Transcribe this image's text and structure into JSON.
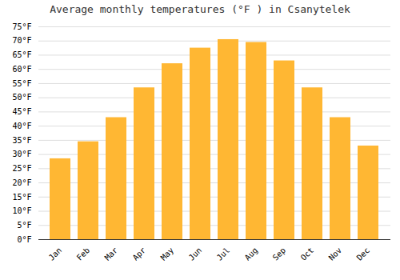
{
  "chart_data": {
    "type": "bar",
    "title": "Average monthly temperatures (°F ) in Csanytelek",
    "categories": [
      "Jan",
      "Feb",
      "Mar",
      "Apr",
      "May",
      "Jun",
      "Jul",
      "Aug",
      "Sep",
      "Oct",
      "Nov",
      "Dec"
    ],
    "values": [
      28.5,
      34.5,
      43.0,
      53.5,
      62.0,
      67.5,
      70.5,
      69.5,
      63.0,
      53.5,
      43.0,
      33.0
    ],
    "color": "#FFB733",
    "ylim": [
      0,
      75
    ],
    "yticks": [
      {
        "value": 0,
        "label": "0°F"
      },
      {
        "value": 5,
        "label": "5°F"
      },
      {
        "value": 10,
        "label": "10°F"
      },
      {
        "value": 15,
        "label": "15°F"
      },
      {
        "value": 20,
        "label": "20°F"
      },
      {
        "value": 25,
        "label": "25°F"
      },
      {
        "value": 30,
        "label": "30°F"
      },
      {
        "value": 35,
        "label": "35°F"
      },
      {
        "value": 40,
        "label": "40°F"
      },
      {
        "value": 45,
        "label": "45°F"
      },
      {
        "value": 50,
        "label": "50°F"
      },
      {
        "value": 55,
        "label": "55°F"
      },
      {
        "value": 60,
        "label": "60°F"
      },
      {
        "value": 65,
        "label": "65°F"
      },
      {
        "value": 70,
        "label": "70°F"
      },
      {
        "value": 75,
        "label": "75°F"
      }
    ],
    "grid": true
  }
}
